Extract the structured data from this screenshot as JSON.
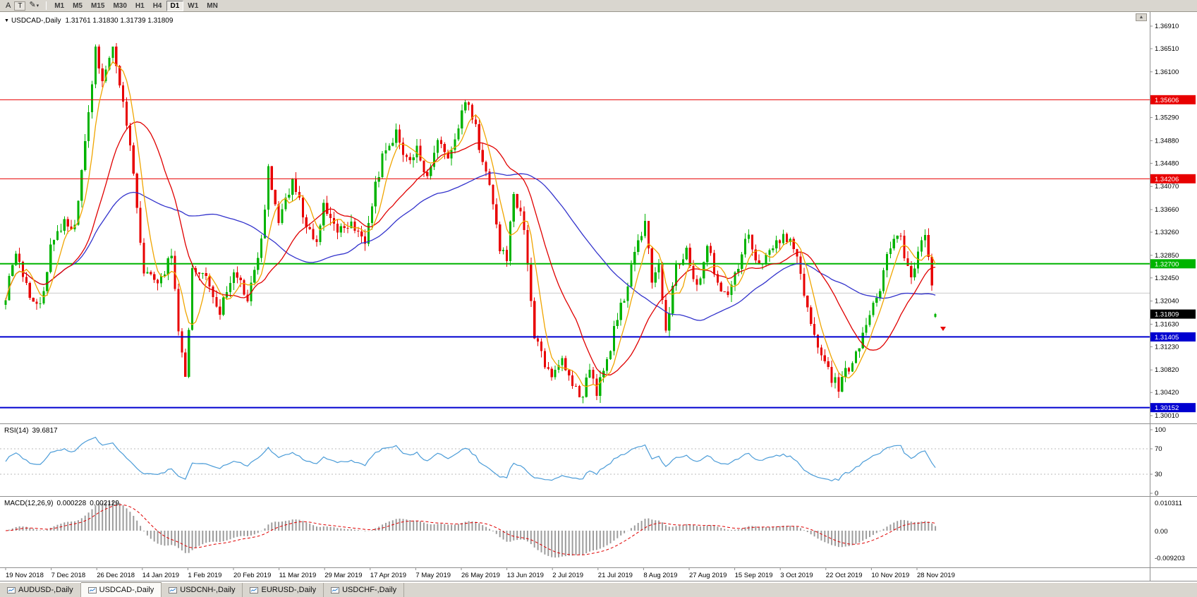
{
  "toolbar": {
    "tools": [
      {
        "name": "font-tool",
        "label": "A"
      },
      {
        "name": "text-tool",
        "label": "T"
      },
      {
        "name": "draw-tool",
        "label": "✎"
      },
      {
        "name": "draw-tool-dropdown",
        "label": "▾"
      }
    ],
    "timeframes": [
      {
        "label": "M1"
      },
      {
        "label": "M5"
      },
      {
        "label": "M15"
      },
      {
        "label": "M30"
      },
      {
        "label": "H1"
      },
      {
        "label": "H4"
      },
      {
        "label": "D1",
        "active": true
      },
      {
        "label": "W1"
      },
      {
        "label": "MN"
      }
    ]
  },
  "chart": {
    "header": {
      "collapse_icon": "▼",
      "symbol": "USDCAD-,Daily",
      "ohlc": "1.31761 1.31830 1.31739 1.31809"
    },
    "scroll_icon": "▲"
  },
  "price_axis": {
    "ticks": [
      "1.36910",
      "1.36510",
      "1.36100",
      "1.35290",
      "1.34880",
      "1.34480",
      "1.34070",
      "1.33660",
      "1.33260",
      "1.32850",
      "1.32450",
      "1.32040",
      "1.31630",
      "1.31230",
      "1.30820",
      "1.30420",
      "1.30010"
    ],
    "current": {
      "label": "1.31809",
      "bg": "#000000",
      "fg": "#ffffff"
    }
  },
  "levels": [
    {
      "label": "1.35606",
      "price": 1.35606,
      "color": "#e80000",
      "width": 1,
      "badge": true
    },
    {
      "label": "1.34206",
      "price": 1.34206,
      "color": "#e80000",
      "width": 1,
      "badge": true
    },
    {
      "label": "1.32700",
      "price": 1.327,
      "color": "#00b400",
      "width": 2,
      "badge": true
    },
    {
      "label": "1.31405",
      "price": 1.31405,
      "color": "#0000d0",
      "width": 2,
      "badge": true
    },
    {
      "label": "1.30152",
      "price": 1.30152,
      "color": "#0000d0",
      "width": 2,
      "badge": true
    },
    {
      "label": "",
      "price": 1.3218,
      "color": "#cccccc",
      "width": 1,
      "badge": false
    }
  ],
  "rsi": {
    "label": "RSI(14)",
    "value": "39.6817",
    "scale": [
      "100",
      "70",
      "30",
      "0"
    ],
    "level_lines": [
      70,
      30
    ],
    "color": "#4b9cd8"
  },
  "macd": {
    "label": "MACD(12,26,9)",
    "value1": "0.000228",
    "value2": "0.002129",
    "axis": [
      "0.010311",
      "0.00",
      "-0.009203"
    ],
    "hist_color": "#9c9c9c",
    "signal_color": "#e00000"
  },
  "dates": [
    "19 Nov 2018",
    "7 Dec 2018",
    "26 Dec 2018",
    "14 Jan 2019",
    "1 Feb 2019",
    "20 Feb 2019",
    "11 Mar 2019",
    "29 Mar 2019",
    "17 Apr 2019",
    "7 May 2019",
    "26 May 2019",
    "13 Jun 2019",
    "2 Jul 2019",
    "21 Jul 2019",
    "8 Aug 2019",
    "27 Aug 2019",
    "15 Sep 2019",
    "3 Oct 2019",
    "22 Oct 2019",
    "10 Nov 2019",
    "28 Nov 2019"
  ],
  "tabs": [
    {
      "label": "AUDUSD-,Daily",
      "active": false
    },
    {
      "label": "USDCAD-,Daily",
      "active": true
    },
    {
      "label": "USDCNH-,Daily",
      "active": false
    },
    {
      "label": "EURUSD-,Daily",
      "active": false
    },
    {
      "label": "USDCHF-,Daily",
      "active": false
    }
  ],
  "colors": {
    "bull": "#00b300",
    "bear": "#e80000",
    "ma_fast": "#f0a500",
    "ma_mid": "#e00000",
    "ma_slow": "#3333cc",
    "axis_line": "#8f8f8f",
    "grid": "#cccccc"
  },
  "chart_data": {
    "type": "candlestick",
    "symbol": "USDCAD",
    "timeframe": "Daily",
    "candle_count": 270,
    "price_range": {
      "top": 1.3691,
      "bottom": 1.3001
    },
    "last_candle": {
      "o": 1.31761,
      "h": 1.3183,
      "l": 1.31739,
      "c": 1.31809
    },
    "moving_averages": [
      {
        "period": 6,
        "color_key": "ma_fast"
      },
      {
        "period": 20,
        "color_key": "ma_mid"
      },
      {
        "period": 50,
        "color_key": "ma_slow"
      }
    ],
    "close_waypoints": [
      [
        0,
        1.3215
      ],
      [
        3,
        1.329
      ],
      [
        6,
        1.323
      ],
      [
        10,
        1.319
      ],
      [
        13,
        1.33
      ],
      [
        17,
        1.3345
      ],
      [
        20,
        1.333
      ],
      [
        23,
        1.348
      ],
      [
        26,
        1.365
      ],
      [
        28,
        1.3595
      ],
      [
        31,
        1.3645
      ],
      [
        34,
        1.3555
      ],
      [
        37,
        1.343
      ],
      [
        40,
        1.326
      ],
      [
        44,
        1.3225
      ],
      [
        48,
        1.329
      ],
      [
        50,
        1.315
      ],
      [
        52,
        1.306
      ],
      [
        54,
        1.3265
      ],
      [
        58,
        1.324
      ],
      [
        62,
        1.318
      ],
      [
        66,
        1.326
      ],
      [
        70,
        1.321
      ],
      [
        74,
        1.331
      ],
      [
        76,
        1.344
      ],
      [
        79,
        1.334
      ],
      [
        83,
        1.342
      ],
      [
        86,
        1.336
      ],
      [
        90,
        1.33
      ],
      [
        92,
        1.337
      ],
      [
        96,
        1.333
      ],
      [
        100,
        1.3345
      ],
      [
        104,
        1.331
      ],
      [
        106,
        1.338
      ],
      [
        110,
        1.348
      ],
      [
        113,
        1.35
      ],
      [
        116,
        1.345
      ],
      [
        119,
        1.347
      ],
      [
        122,
        1.343
      ],
      [
        125,
        1.349
      ],
      [
        128,
        1.345
      ],
      [
        131,
        1.352
      ],
      [
        134,
        1.356
      ],
      [
        137,
        1.348
      ],
      [
        140,
        1.342
      ],
      [
        143,
        1.33
      ],
      [
        145,
        1.328
      ],
      [
        147,
        1.3395
      ],
      [
        150,
        1.334
      ],
      [
        153,
        1.314
      ],
      [
        156,
        1.309
      ],
      [
        158,
        1.307
      ],
      [
        161,
        1.311
      ],
      [
        164,
        1.305
      ],
      [
        167,
        1.3038
      ],
      [
        169,
        1.308
      ],
      [
        171,
        1.3045
      ],
      [
        174,
        1.309
      ],
      [
        177,
        1.318
      ],
      [
        180,
        1.323
      ],
      [
        182,
        1.329
      ],
      [
        184,
        1.332
      ],
      [
        185,
        1.3345
      ],
      [
        187,
        1.324
      ],
      [
        189,
        1.327
      ],
      [
        191,
        1.315
      ],
      [
        194,
        1.326
      ],
      [
        197,
        1.329
      ],
      [
        200,
        1.323
      ],
      [
        203,
        1.33
      ],
      [
        206,
        1.324
      ],
      [
        209,
        1.321
      ],
      [
        212,
        1.327
      ],
      [
        215,
        1.332
      ],
      [
        218,
        1.326
      ],
      [
        221,
        1.329
      ],
      [
        224,
        1.331
      ],
      [
        227,
        1.332
      ],
      [
        230,
        1.325
      ],
      [
        233,
        1.316
      ],
      [
        236,
        1.311
      ],
      [
        239,
        1.307
      ],
      [
        241,
        1.305
      ],
      [
        244,
        1.309
      ],
      [
        247,
        1.313
      ],
      [
        250,
        1.317
      ],
      [
        253,
        1.323
      ],
      [
        256,
        1.33
      ],
      [
        258,
        1.333
      ],
      [
        260,
        1.329
      ],
      [
        262,
        1.324
      ],
      [
        264,
        1.329
      ],
      [
        266,
        1.333
      ],
      [
        268,
        1.324
      ],
      [
        269,
        1.31809
      ]
    ]
  }
}
